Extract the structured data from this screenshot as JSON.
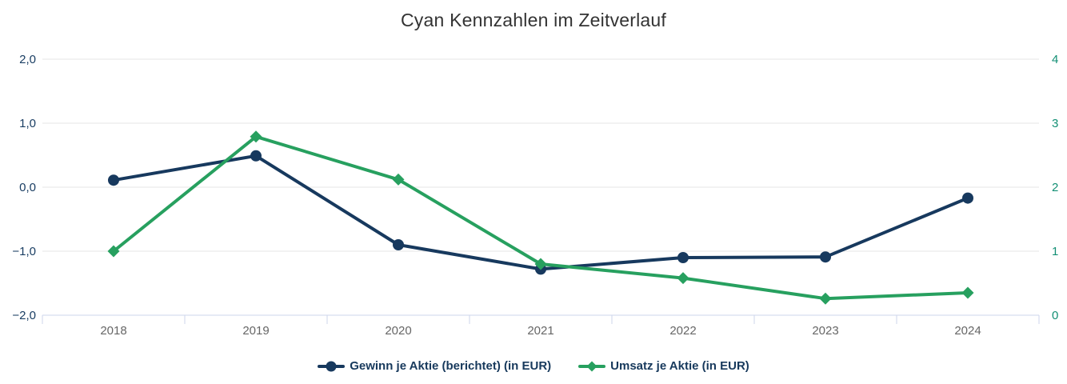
{
  "chart_data": {
    "type": "line",
    "title": "Cyan Kennzahlen im Zeitverlauf",
    "categories": [
      "2018",
      "2019",
      "2020",
      "2021",
      "2022",
      "2023",
      "2024"
    ],
    "series": [
      {
        "name": "Gewinn je Aktie (berichtet) (in EUR)",
        "axis": "left",
        "marker": "circle",
        "color": "#17395e",
        "values": [
          0.11,
          0.49,
          -0.9,
          -1.28,
          -1.1,
          -1.09,
          -0.17
        ]
      },
      {
        "name": "Umsatz je Aktie (in EUR)",
        "axis": "right",
        "marker": "diamond",
        "color": "#27a05f",
        "values": [
          1.0,
          2.79,
          2.12,
          0.8,
          0.58,
          0.26,
          0.35
        ]
      }
    ],
    "y_left": {
      "min": -2,
      "max": 2,
      "tick_values": [
        2,
        1,
        0,
        -1,
        -2
      ],
      "tick_labels": [
        "2,0",
        "1,0",
        "0,0",
        "−1,0",
        "−2,0"
      ]
    },
    "y_right": {
      "min": 0,
      "max": 4,
      "tick_values": [
        4,
        3,
        2,
        1,
        0
      ],
      "tick_labels": [
        "4",
        "3",
        "2",
        "1",
        "0"
      ]
    },
    "grid": true,
    "legend_position": "bottom",
    "colors": {
      "title": "#333333",
      "gridline": "#e6e6e6",
      "axis_line": "#ccd6eb",
      "x_tick_label": "#666666",
      "y_left_tick_label": "#1a3e63",
      "y_right_tick_label": "#128f74",
      "legend_text": "#17395c",
      "background": "#ffffff"
    }
  }
}
